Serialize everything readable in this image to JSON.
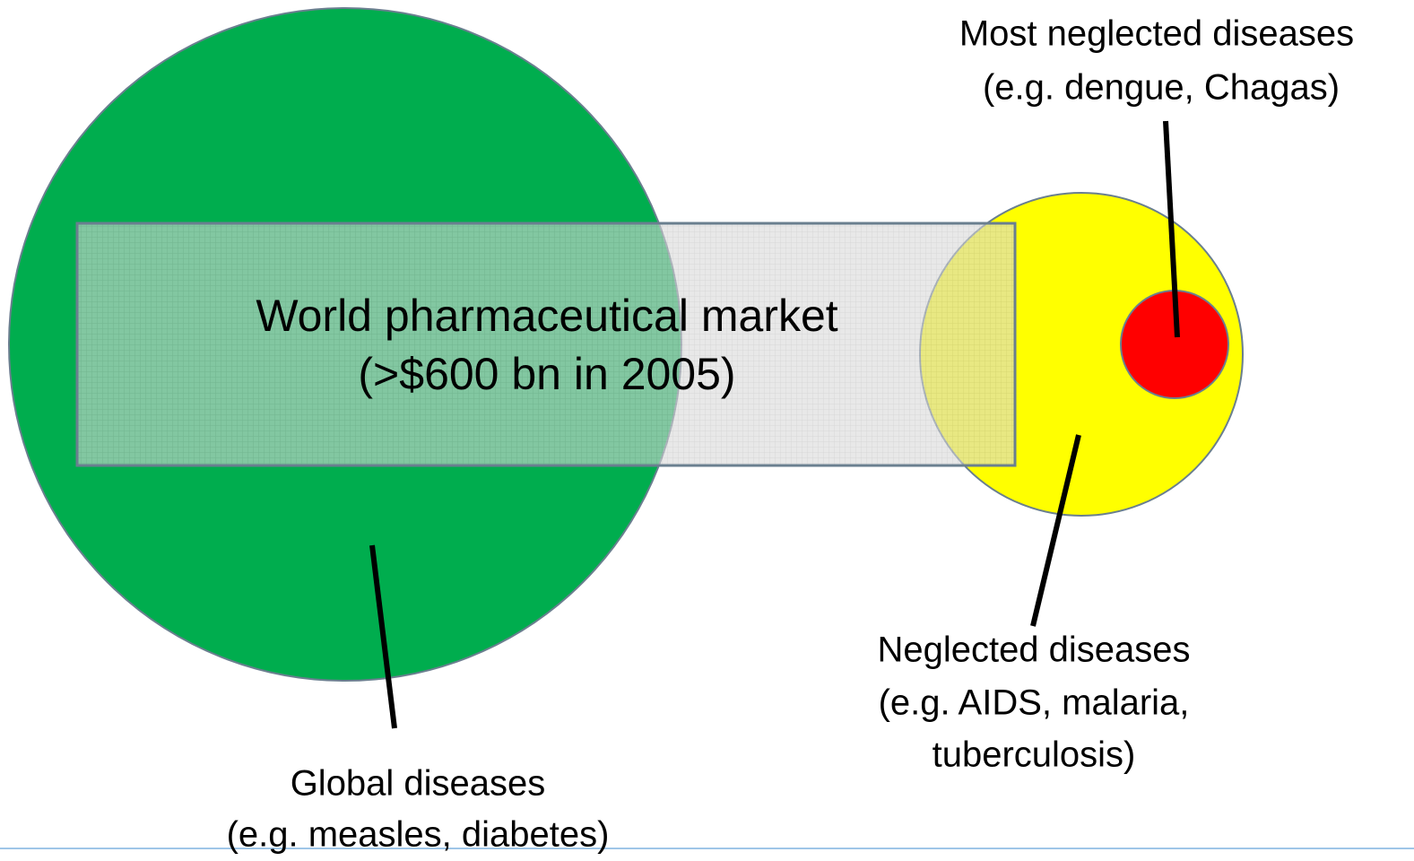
{
  "market": {
    "lines": [
      "World pharmaceutical market",
      "(>$600 bn in 2005)"
    ]
  },
  "nodes": [
    {
      "lines": [
        "Global diseases",
        "(e.g. measles, diabetes)"
      ]
    },
    {
      "lines": [
        "Neglected diseases",
        "(e.g. AIDS, malaria,",
        "tuberculosis)"
      ]
    },
    {
      "lines": [
        "Most neglected diseases",
        "(e.g. dengue, Chagas)"
      ]
    }
  ]
}
